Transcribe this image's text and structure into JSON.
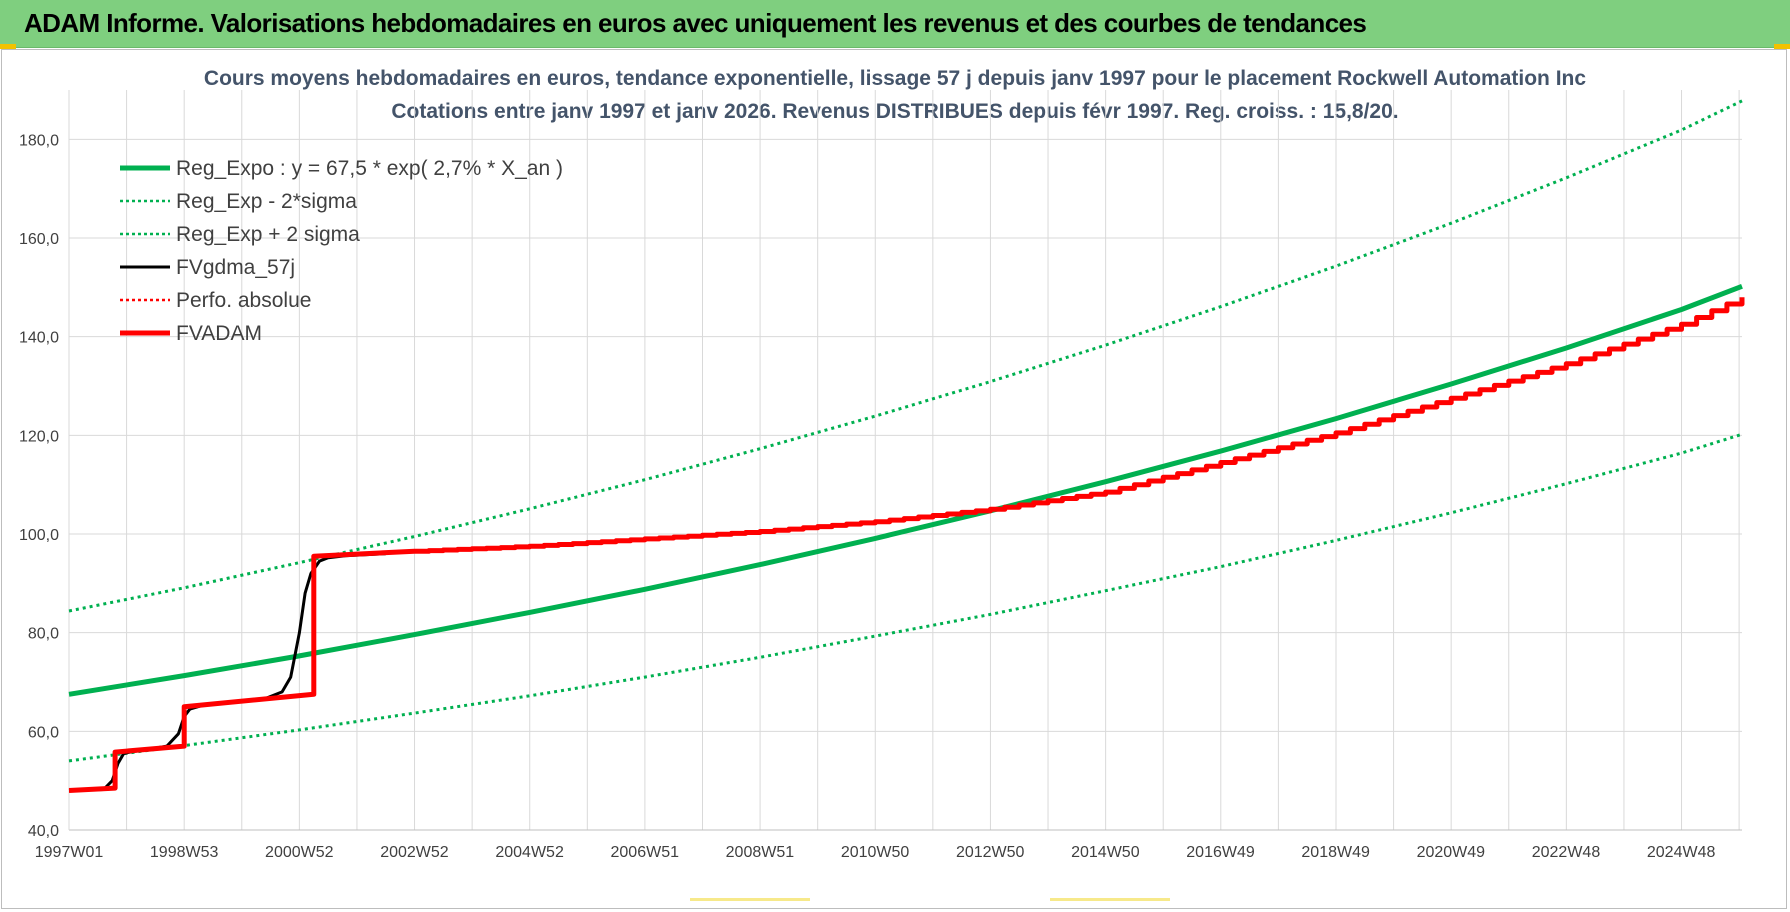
{
  "header": {
    "title": "ADAM Informe. Valorisations hebdomadaires en euros avec uniquement les revenus et des courbes de tendances"
  },
  "colors": {
    "header_bg": "#7fcf7f",
    "reg_green": "#00b050",
    "black": "#000000",
    "red": "#ff0000",
    "title_text": "#44546a",
    "grid": "#d9d9d9"
  },
  "chart_data": {
    "type": "line",
    "title": "Cours moyens hebdomadaires en euros, tendance exponentielle, lissage 57 j depuis janv 1997  pour le placement Rockwell Automation Inc",
    "subtitle": "Cotations entre janv 1997 et janv 2026. Revenus DISTRIBUES depuis févr 1997. Reg. croiss. : 15,8/20.",
    "ylim": [
      40,
      190
    ],
    "yticks": [
      "40,0",
      "60,0",
      "80,0",
      "100,0",
      "120,0",
      "140,0",
      "160,0",
      "180,0"
    ],
    "xlim": [
      1997.0,
      2026.05
    ],
    "xtick_labels": [
      "1997W01",
      "1998W53",
      "2000W52",
      "2002W52",
      "2004W52",
      "2006W51",
      "2008W51",
      "2010W50",
      "2012W50",
      "2014W50",
      "2016W49",
      "2018W49",
      "2020W49",
      "2022W48",
      "2024W48"
    ],
    "grid": true,
    "legend_position": "top-left",
    "legend": [
      {
        "name": "Reg_Expo : y = 67,5 * exp( 2,7% *  X_an )",
        "color": "#00b050",
        "style": "solid-thick"
      },
      {
        "name": "Reg_Exp - 2*sigma",
        "color": "#00b050",
        "style": "dotted"
      },
      {
        "name": "Reg_Exp + 2 sigma",
        "color": "#00b050",
        "style": "dotted"
      },
      {
        "name": "FVgdma_57j",
        "color": "#000000",
        "style": "solid"
      },
      {
        "name": "Perfo. absolue",
        "color": "#ff0000",
        "style": "dotted"
      },
      {
        "name": "FVADAM",
        "color": "#ff0000",
        "style": "solid-thick"
      }
    ],
    "series": [
      {
        "name": "Reg_Expo : y = 67,5 * exp( 2,7% *  X_an )",
        "x": [
          1997.0,
          1999.0,
          2001.0,
          2003.0,
          2005.0,
          2007.0,
          2009.0,
          2011.0,
          2013.0,
          2015.0,
          2017.0,
          2019.0,
          2021.0,
          2023.0,
          2025.0,
          2026.05
        ],
        "values": [
          67.5,
          71.3,
          75.3,
          79.6,
          84.1,
          88.8,
          93.8,
          99.1,
          104.7,
          110.6,
          116.8,
          123.4,
          130.4,
          137.7,
          145.5,
          150.2
        ]
      },
      {
        "name": "Reg_Exp - 2*sigma",
        "x": [
          1997.0,
          1999.0,
          2001.0,
          2003.0,
          2005.0,
          2007.0,
          2009.0,
          2011.0,
          2013.0,
          2015.0,
          2017.0,
          2019.0,
          2021.0,
          2023.0,
          2025.0,
          2026.05
        ],
        "values": [
          54.0,
          57.1,
          60.3,
          63.7,
          67.2,
          71.0,
          75.0,
          79.3,
          83.7,
          88.5,
          93.4,
          98.7,
          104.3,
          110.2,
          116.4,
          120.2
        ]
      },
      {
        "name": "Reg_Exp + 2 sigma",
        "x": [
          1997.0,
          1999.0,
          2001.0,
          2003.0,
          2005.0,
          2007.0,
          2009.0,
          2011.0,
          2013.0,
          2015.0,
          2017.0,
          2019.0,
          2021.0,
          2023.0,
          2025.0,
          2026.05
        ],
        "values": [
          84.4,
          89.1,
          94.2,
          99.5,
          105.1,
          111.0,
          117.3,
          123.9,
          130.9,
          138.3,
          146.1,
          154.3,
          163.0,
          172.2,
          181.9,
          187.8
        ]
      },
      {
        "name": "FVgdma_57j",
        "x": [
          1997.0,
          1997.6,
          1997.75,
          1997.85,
          1997.95,
          1998.1,
          1998.3,
          1998.7,
          1998.9,
          1999.0,
          1999.1,
          1999.3,
          1999.6,
          2000.0,
          2000.4,
          2000.7,
          2000.85,
          2001.0,
          2001.1,
          2001.2,
          2001.35,
          2001.5,
          2001.8,
          2002.5
        ],
        "values": [
          48.0,
          48.2,
          50.0,
          53.5,
          55.5,
          55.9,
          56.2,
          57.0,
          59.5,
          63.0,
          64.5,
          65.2,
          65.6,
          66.0,
          66.6,
          68.0,
          71.0,
          80.0,
          88.0,
          92.0,
          94.5,
          95.2,
          95.6,
          96.0
        ]
      },
      {
        "name": "FVADAM",
        "x": [
          1997.0,
          1997.8,
          1997.8,
          1999.0,
          1999.0,
          2001.25,
          2001.25,
          2003.0,
          2005.0,
          2007.0,
          2009.0,
          2011.0,
          2013.0,
          2015.0,
          2017.0,
          2019.0,
          2021.0,
          2023.0,
          2025.0,
          2026.05
        ],
        "values": [
          48.0,
          48.5,
          55.8,
          57.0,
          65.0,
          67.5,
          95.5,
          96.5,
          97.5,
          99.0,
          100.5,
          102.5,
          105.0,
          108.5,
          114.5,
          120.5,
          127.5,
          134.5,
          142.5,
          148.0
        ]
      },
      {
        "name": "Perfo. absolue",
        "x": [
          1997.0,
          1997.8,
          1997.8,
          1999.0,
          1999.0,
          2001.25,
          2001.25,
          2003.0,
          2005.0,
          2007.0,
          2009.0,
          2011.0,
          2013.0,
          2015.0,
          2017.0,
          2019.0,
          2021.0,
          2023.0,
          2025.0,
          2026.05
        ],
        "values": [
          48.0,
          48.5,
          55.8,
          57.0,
          65.0,
          67.5,
          95.5,
          96.5,
          97.5,
          99.0,
          100.5,
          102.5,
          105.0,
          108.5,
          114.5,
          120.5,
          127.5,
          134.5,
          142.5,
          148.0
        ]
      }
    ]
  }
}
